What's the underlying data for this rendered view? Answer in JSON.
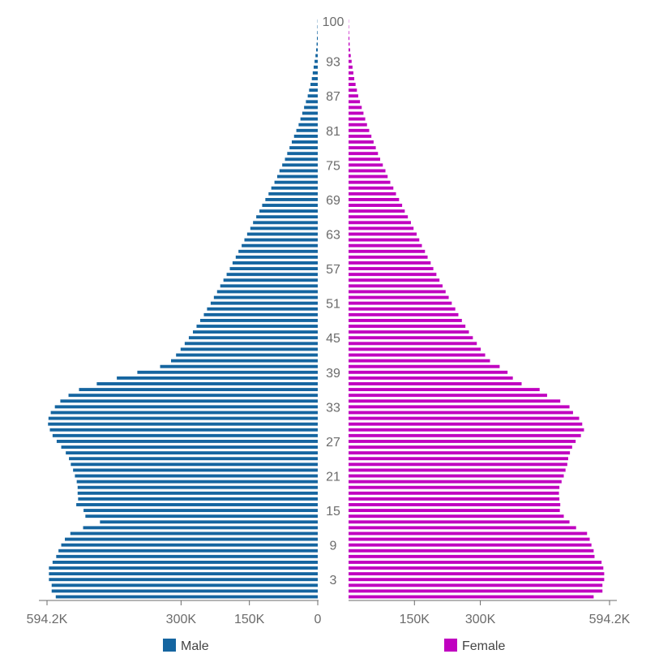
{
  "colors": {
    "male": "#1565a0",
    "female": "#c000c0",
    "axis": "#6b6b6b"
  },
  "chart_data": {
    "type": "bar",
    "subtype": "population-pyramid",
    "title": "",
    "xlabel": "",
    "ylabel": "",
    "legend_position": "bottom",
    "grid": false,
    "x_max": 594200,
    "ticks_left": [
      {
        "value": 594200,
        "label": "594.2K"
      },
      {
        "value": 300000,
        "label": "300K"
      },
      {
        "value": 150000,
        "label": "150K"
      },
      {
        "value": 0,
        "label": "0"
      }
    ],
    "ticks_right": [
      {
        "value": 150000,
        "label": "150K"
      },
      {
        "value": 300000,
        "label": "300K"
      },
      {
        "value": 594200,
        "label": "594.2K"
      }
    ],
    "age_labels": [
      "100",
      "93",
      "87",
      "81",
      "75",
      "69",
      "63",
      "57",
      "51",
      "45",
      "39",
      "33",
      "27",
      "21",
      "15",
      "9",
      "3"
    ],
    "ages_from_oldest": [
      100,
      99,
      98,
      97,
      96,
      95,
      94,
      93,
      92,
      91,
      90,
      89,
      88,
      87,
      86,
      85,
      84,
      83,
      82,
      81,
      80,
      79,
      78,
      77,
      76,
      75,
      74,
      73,
      72,
      71,
      70,
      69,
      68,
      67,
      66,
      65,
      64,
      63,
      62,
      61,
      60,
      59,
      58,
      57,
      56,
      55,
      54,
      53,
      52,
      51,
      50,
      49,
      48,
      47,
      46,
      45,
      44,
      43,
      42,
      41,
      40,
      39,
      38,
      37,
      36,
      35,
      34,
      33,
      32,
      31,
      30,
      29,
      28,
      27,
      26,
      25,
      24,
      23,
      22,
      21,
      20,
      19,
      18,
      17,
      16,
      15,
      14,
      13,
      12,
      11,
      10,
      9,
      8,
      7,
      6,
      5,
      4,
      3,
      2,
      1,
      0
    ],
    "series": [
      {
        "name": "Male",
        "values": [
          500,
          800,
          1200,
          1800,
          2500,
          3500,
          5000,
          7000,
          9000,
          11000,
          13000,
          16000,
          19000,
          22000,
          26000,
          30000,
          34000,
          38000,
          42000,
          47000,
          52000,
          57000,
          62000,
          67000,
          72000,
          78000,
          84000,
          89000,
          95000,
          102000,
          108000,
          115000,
          122000,
          128000,
          135000,
          142000,
          148000,
          155000,
          161000,
          167000,
          174000,
          180000,
          187000,
          193000,
          200000,
          207000,
          214000,
          221000,
          228000,
          235000,
          243000,
          250000,
          258000,
          266000,
          274000,
          283000,
          292000,
          301000,
          311000,
          322000,
          346000,
          396000,
          441000,
          485000,
          524000,
          547000,
          565000,
          577000,
          586000,
          591000,
          592000,
          588000,
          582000,
          573000,
          563000,
          553000,
          546000,
          542000,
          537000,
          533000,
          529000,
          527000,
          527000,
          526000,
          530000,
          514000,
          510000,
          478000,
          515000,
          543000,
          555000,
          563000,
          569000,
          574000,
          582000,
          590000,
          590000,
          590000,
          584000,
          584000,
          575000
        ]
      },
      {
        "name": "Female",
        "values": [
          500,
          800,
          1200,
          1800,
          2500,
          3500,
          5000,
          7000,
          9000,
          11000,
          13000,
          16000,
          19000,
          22000,
          26000,
          30000,
          34000,
          38000,
          42000,
          47000,
          52000,
          57000,
          62000,
          67000,
          72000,
          78000,
          84000,
          89000,
          95000,
          102000,
          108000,
          115000,
          122000,
          128000,
          135000,
          142000,
          148000,
          155000,
          161000,
          167000,
          174000,
          180000,
          187000,
          193000,
          200000,
          207000,
          214000,
          221000,
          228000,
          235000,
          243000,
          250000,
          258000,
          266000,
          274000,
          283000,
          292000,
          301000,
          311000,
          322000,
          344000,
          362000,
          374000,
          394000,
          435000,
          452000,
          482000,
          503000,
          511000,
          525000,
          532000,
          536000,
          529000,
          517000,
          509000,
          504000,
          500000,
          498000,
          494000,
          490000,
          485000,
          480000,
          479000,
          480000,
          482000,
          481000,
          490000,
          503000,
          518000,
          543000,
          549000,
          553000,
          558000,
          560000,
          576000,
          580000,
          582000,
          582000,
          578000,
          578000,
          558000
        ]
      }
    ]
  }
}
